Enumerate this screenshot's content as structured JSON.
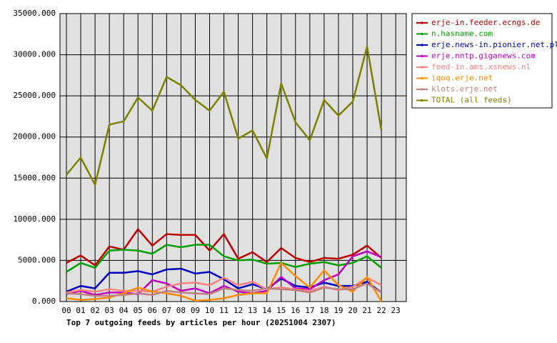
{
  "chart_data": {
    "type": "line",
    "title": "Top 7 outgoing feeds by articles per hour (20251004 2307)",
    "categories": [
      "00",
      "01",
      "02",
      "03",
      "04",
      "05",
      "06",
      "07",
      "08",
      "09",
      "10",
      "11",
      "12",
      "13",
      "14",
      "15",
      "16",
      "17",
      "18",
      "19",
      "20",
      "21",
      "22",
      "23"
    ],
    "ylim": [
      0,
      35000
    ],
    "yticks": [
      {
        "value": 0,
        "label": "0.000"
      },
      {
        "value": 5000,
        "label": "5000.000"
      },
      {
        "value": 10000,
        "label": "10000.000"
      },
      {
        "value": 15000,
        "label": "15000.000"
      },
      {
        "value": 20000,
        "label": "20000.000"
      },
      {
        "value": 25000,
        "label": "25000.000"
      },
      {
        "value": 30000,
        "label": "30000.000"
      },
      {
        "value": 35000,
        "label": "35000.000"
      }
    ],
    "grid": true,
    "legend": "right",
    "series": [
      {
        "name": "erje-in.feeder.ecngs.de",
        "color": "#c00000",
        "values": [
          4700,
          5600,
          4400,
          6700,
          6300,
          8800,
          6800,
          8200,
          8100,
          8100,
          6200,
          8200,
          5200,
          6000,
          4800,
          6500,
          5300,
          4800,
          5300,
          5200,
          5700,
          6800,
          5300,
          null
        ]
      },
      {
        "name": "n.hasname.com",
        "color": "#00a000",
        "values": [
          3600,
          4700,
          4100,
          6200,
          6300,
          6200,
          5800,
          6900,
          6600,
          6900,
          6900,
          5500,
          5000,
          5100,
          4600,
          4700,
          4200,
          4600,
          4800,
          4400,
          4700,
          5500,
          4100,
          null
        ]
      },
      {
        "name": "erje.news-in.pionier.net.pl",
        "color": "#0000c0",
        "values": [
          1200,
          1900,
          1600,
          3500,
          3500,
          3700,
          3300,
          3900,
          4000,
          3400,
          3600,
          2700,
          1600,
          2100,
          1500,
          2800,
          1900,
          1700,
          2300,
          1900,
          1900,
          2400,
          1100,
          null
        ]
      },
      {
        "name": "erje.nntp.giganews.com",
        "color": "#c000c0",
        "values": [
          900,
          1300,
          800,
          1100,
          1100,
          900,
          2600,
          2200,
          1300,
          1600,
          1000,
          1900,
          1200,
          1000,
          1300,
          3000,
          1600,
          1500,
          2600,
          3300,
          5500,
          6100,
          5400,
          null
        ]
      },
      {
        "name": "feed-in.ams.xsnews.nl",
        "color": "#ff8080",
        "values": [
          1100,
          1400,
          1200,
          1500,
          1300,
          1300,
          1200,
          1800,
          2200,
          2300,
          2000,
          2900,
          2000,
          2400,
          1500,
          1700,
          1500,
          1300,
          1800,
          1400,
          1800,
          2900,
          2000,
          null
        ]
      },
      {
        "name": "iqoq.erje.net",
        "color": "#ff8c00",
        "values": [
          400,
          200,
          300,
          500,
          1000,
          1700,
          1200,
          1000,
          700,
          100,
          200,
          400,
          800,
          1000,
          1000,
          4700,
          3100,
          1700,
          3800,
          2000,
          1200,
          3000,
          0,
          null
        ]
      },
      {
        "name": "klots.erje.net",
        "color": "#c08080",
        "values": [
          1000,
          900,
          700,
          700,
          800,
          1000,
          800,
          1300,
          1100,
          1000,
          900,
          1600,
          1400,
          1300,
          1600,
          1500,
          1400,
          1100,
          1700,
          1500,
          1500,
          2200,
          1100,
          null
        ]
      },
      {
        "name": "TOTAL (all feeds)",
        "color": "#808000",
        "values": [
          15400,
          17500,
          14200,
          21500,
          21900,
          24800,
          23200,
          27300,
          26300,
          24500,
          23200,
          25500,
          19800,
          20800,
          17400,
          26500,
          21800,
          19600,
          24500,
          22600,
          24300,
          31000,
          20800,
          null
        ]
      }
    ]
  }
}
